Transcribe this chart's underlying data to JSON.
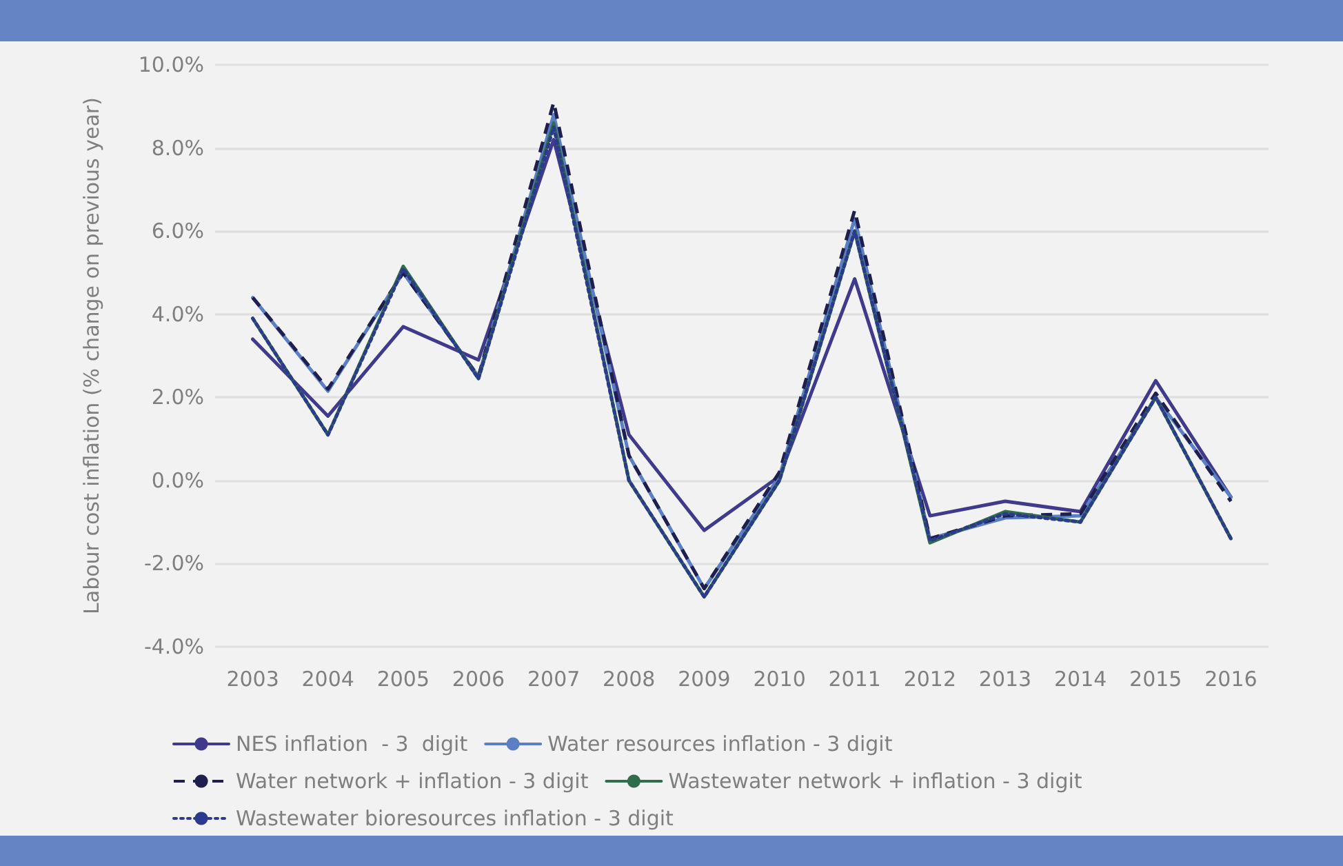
{
  "chart_data": {
    "type": "line",
    "ylabel": "Labour cost inflation (% change on previous year)",
    "categories": [
      "2003",
      "2004",
      "2005",
      "2006",
      "2007",
      "2008",
      "2009",
      "2010",
      "2011",
      "2012",
      "2013",
      "2014",
      "2015",
      "2016"
    ],
    "series": [
      {
        "name": "NES inflation  - 3  digit",
        "color": "#3f3a8c",
        "line_style": "solid",
        "values": [
          3.4,
          1.55,
          3.7,
          2.9,
          8.2,
          1.1,
          -1.2,
          0.1,
          4.85,
          -0.85,
          -0.5,
          -0.75,
          2.4,
          -0.4
        ]
      },
      {
        "name": "Water resources inflation - 3 digit",
        "color": "#5b7fc4",
        "line_style": "solid",
        "values": [
          4.4,
          2.15,
          5.0,
          2.5,
          8.8,
          0.6,
          -2.6,
          0.1,
          6.3,
          -1.4,
          -0.9,
          -0.85,
          2.0,
          -0.4
        ]
      },
      {
        "name": "Water network + inflation - 3 digit",
        "color": "#1f1f4f",
        "line_style": "dashed",
        "values": [
          4.4,
          2.2,
          5.0,
          2.5,
          9.1,
          0.6,
          -2.6,
          0.2,
          6.5,
          -1.4,
          -0.85,
          -0.8,
          2.1,
          -0.5
        ]
      },
      {
        "name": "Wastewater network + inflation - 3 digit",
        "color": "#2e6e4a",
        "line_style": "solid",
        "values": [
          3.9,
          1.1,
          5.15,
          2.45,
          8.6,
          0.0,
          -2.8,
          0.0,
          6.0,
          -1.5,
          -0.75,
          -1.0,
          2.0,
          -1.4
        ]
      },
      {
        "name": "Wastewater bioresources inflation - 3 digit",
        "color": "#2b3a8c",
        "line_style": "dotted",
        "values": [
          3.9,
          1.1,
          5.1,
          2.45,
          8.5,
          0.0,
          -2.8,
          0.0,
          6.0,
          -1.45,
          -0.8,
          -1.0,
          2.0,
          -1.4
        ]
      }
    ],
    "ylim": [
      -4,
      10
    ],
    "yticks": [
      {
        "value": -4,
        "label": "-4.0%"
      },
      {
        "value": -2,
        "label": "-2.0%"
      },
      {
        "value": 0,
        "label": "0.0%"
      },
      {
        "value": 2,
        "label": "2.0%"
      },
      {
        "value": 4,
        "label": "4.0%"
      },
      {
        "value": 6,
        "label": "6.0%"
      },
      {
        "value": 8,
        "label": "8.0%"
      },
      {
        "value": 10,
        "label": "10.0%"
      }
    ],
    "grid": "y",
    "legend": "bottom",
    "marker": "none"
  }
}
